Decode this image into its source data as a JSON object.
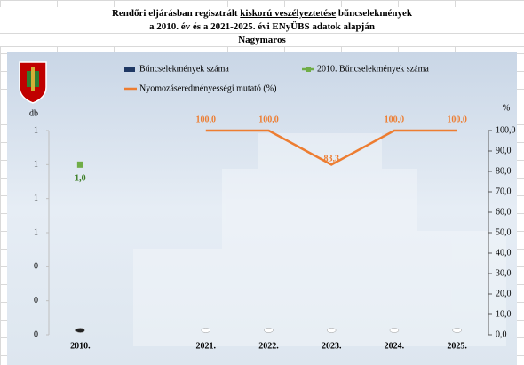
{
  "chart_data": {
    "type": "combo",
    "title": [
      "Rendőri eljárásban regisztrált",
      "kiskorú veszélyeztetése",
      "bűncselekmények"
    ],
    "subtitle": "a 2010. év és a 2021-2025. évi ENyÜBS adatok alapján",
    "location": "Nagymaros",
    "y_label": "db",
    "y2_label": "%",
    "categories": [
      "2010.",
      null,
      "2021.",
      "2022.",
      "2023.",
      "2024.",
      "2025."
    ],
    "ylim": [
      0,
      1.2
    ],
    "yticks": [
      0,
      {
        "value": 0.2,
        "label": "0"
      },
      {
        "value": 0.4,
        "label": "0"
      },
      {
        "value": 0.6,
        "label": "1"
      },
      {
        "value": 0.8,
        "label": "1"
      },
      1,
      {
        "value": 1.2,
        "label": "1"
      }
    ],
    "y2lim": [
      0,
      100
    ],
    "y2ticks": [
      {
        "value": 0,
        "label": "0,0"
      },
      {
        "value": 10,
        "label": "10,0"
      },
      {
        "value": 20,
        "label": "20,0"
      },
      {
        "value": 30,
        "label": "30,0"
      },
      {
        "value": 40,
        "label": "40,0"
      },
      {
        "value": 50,
        "label": "50,0"
      },
      {
        "value": 60,
        "label": "60,0"
      },
      {
        "value": 70,
        "label": "70,0"
      },
      {
        "value": 80,
        "label": "80,0"
      },
      {
        "value": 90,
        "label": "90,0"
      },
      {
        "value": 100,
        "label": "100,0"
      }
    ],
    "series": [
      {
        "name": "Bűncselekmények száma",
        "type": "bar",
        "color": "#1f3864",
        "values": [
          0,
          null,
          0,
          0,
          0,
          0,
          0
        ]
      },
      {
        "name": "2010. Bűncselekmények száma",
        "type": "scatter",
        "color": "#70ad47",
        "values": [
          1,
          null,
          null,
          null,
          null,
          null,
          null
        ],
        "value_labels": [
          "1,0",
          null,
          null,
          null,
          null,
          null,
          null
        ]
      },
      {
        "name": "Nyomozáseredményességi mutató (%)",
        "type": "line",
        "axis": "y2",
        "color": "#ed7d31",
        "values": [
          null,
          null,
          100,
          100,
          83.3,
          100,
          100
        ],
        "value_labels": [
          null,
          null,
          "100,0",
          "100,0",
          "83,3",
          "100,0",
          "100,0"
        ]
      }
    ]
  }
}
